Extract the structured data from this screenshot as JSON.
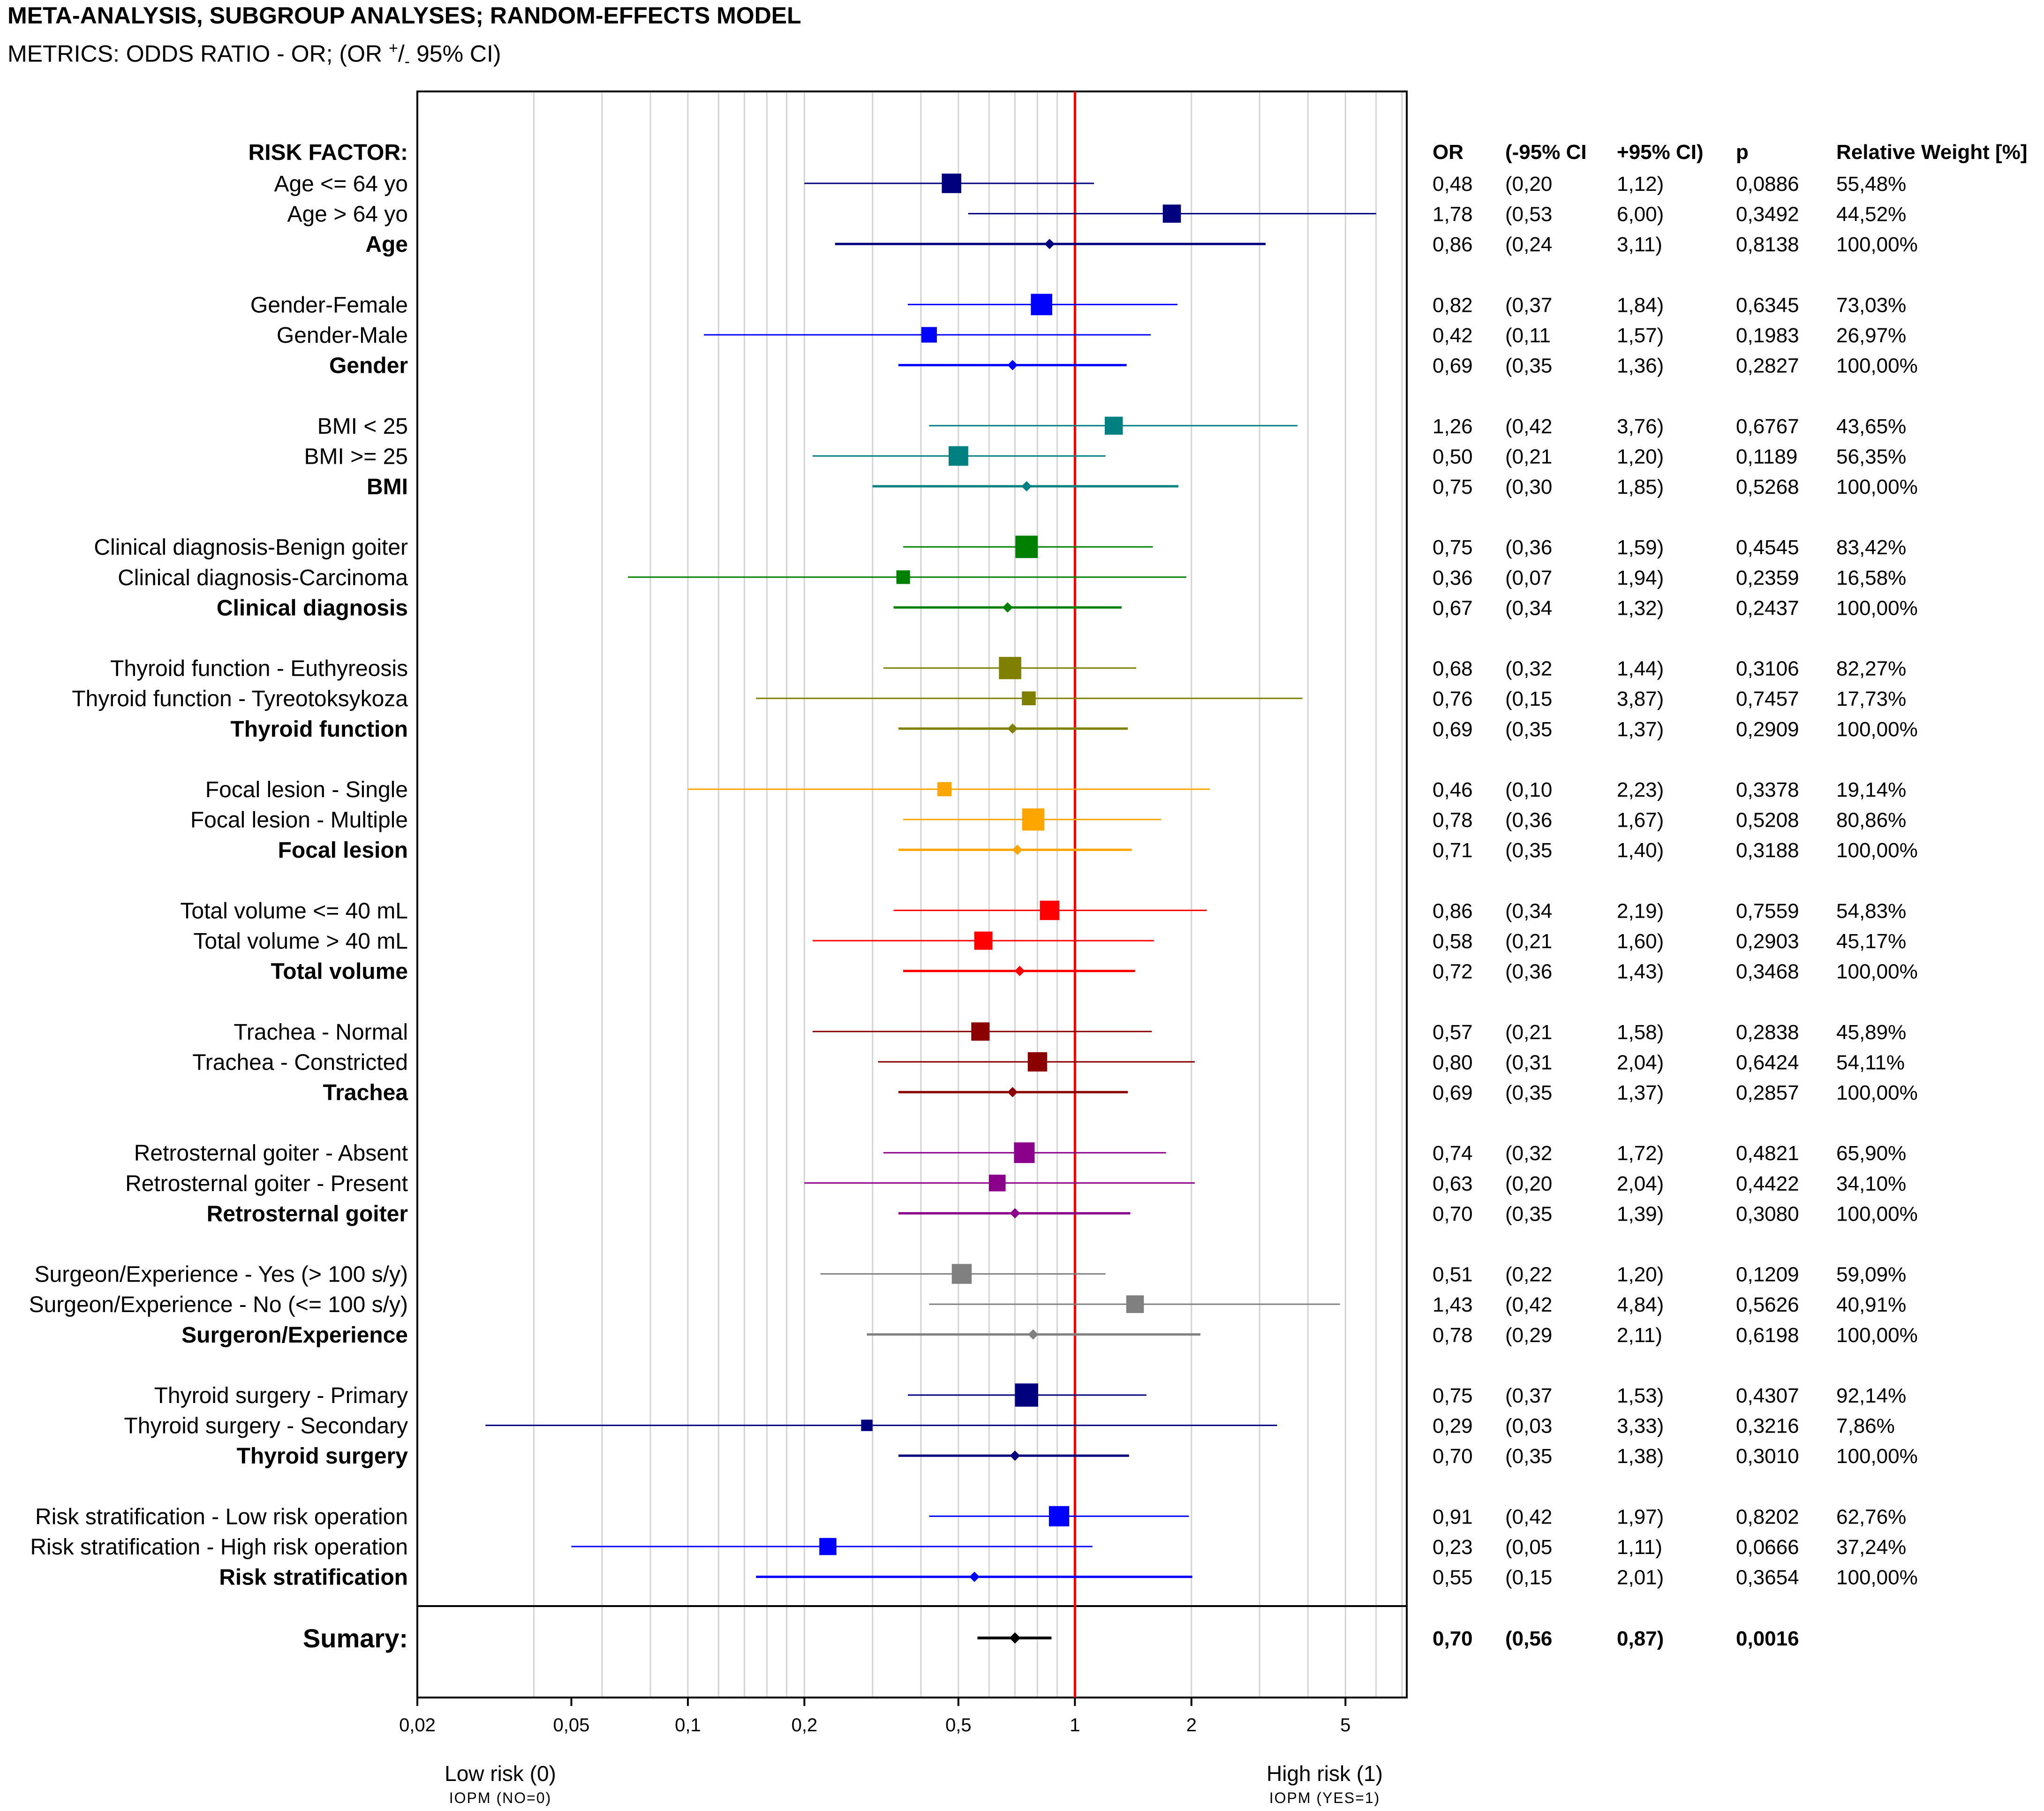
{
  "chart_data": {
    "type": "forest",
    "title": "META-ANALYSIS, SUBGROUP ANALYSES; RANDOM-EFFECTS MODEL",
    "subtitle_prefix": "METRICS: ODDS RATIO - OR; (OR ",
    "subtitle_plus": "+",
    "subtitle_slash": "/",
    "subtitle_minus": "-",
    "subtitle_suffix": " 95% CI)",
    "x_scale": "log",
    "xlim": [
      0.02,
      7.2
    ],
    "x_ticks": [
      0.02,
      0.05,
      0.1,
      0.2,
      0.5,
      1,
      2,
      5
    ],
    "x_tick_labels": [
      "0,02",
      "0,05",
      "0,1",
      "0,2",
      "0,5",
      "1",
      "2",
      "5"
    ],
    "reference_line": 1,
    "header_label": "RISK FACTOR:",
    "columns": [
      "OR",
      "(-95% CI",
      "+95% CI)",
      "p",
      "Relative Weight [%]"
    ],
    "left_footer": "Low risk (0)",
    "left_footer_sub": "IOPM (NO=0)",
    "right_footer": "High risk (1)",
    "right_footer_sub": "IOPM (YES=1)",
    "groups": [
      {
        "color": "#00007f",
        "rows": [
          {
            "label": "Age <= 64 yo",
            "or": 0.48,
            "lo": 0.2,
            "hi": 1.12,
            "or_s": "0,48",
            "lo_s": "(0,20",
            "hi_s": "1,12)",
            "p_s": "0,0886",
            "w_s": "55,48%",
            "w": 55.48
          },
          {
            "label": "Age > 64 yo",
            "or": 1.78,
            "lo": 0.53,
            "hi": 6.0,
            "or_s": "1,78",
            "lo_s": "(0,53",
            "hi_s": "6,00)",
            "p_s": "0,3492",
            "w_s": "44,52%",
            "w": 44.52
          },
          {
            "label": "Age",
            "or": 0.86,
            "lo": 0.24,
            "hi": 3.11,
            "or_s": "0,86",
            "lo_s": "(0,24",
            "hi_s": "3,11)",
            "p_s": "0,8138",
            "w_s": "100,00%",
            "w": 100,
            "total": true
          }
        ]
      },
      {
        "color": "#0000ff",
        "rows": [
          {
            "label": "Gender-Female",
            "or": 0.82,
            "lo": 0.37,
            "hi": 1.84,
            "or_s": "0,82",
            "lo_s": "(0,37",
            "hi_s": "1,84)",
            "p_s": "0,6345",
            "w_s": "73,03%",
            "w": 73.03
          },
          {
            "label": "Gender-Male",
            "or": 0.42,
            "lo": 0.11,
            "hi": 1.57,
            "or_s": "0,42",
            "lo_s": "(0,11",
            "hi_s": "1,57)",
            "p_s": "0,1983",
            "w_s": "26,97%",
            "w": 26.97
          },
          {
            "label": "Gender",
            "or": 0.69,
            "lo": 0.35,
            "hi": 1.36,
            "or_s": "0,69",
            "lo_s": "(0,35",
            "hi_s": "1,36)",
            "p_s": "0,2827",
            "w_s": "100,00%",
            "w": 100,
            "total": true
          }
        ]
      },
      {
        "color": "#008080",
        "rows": [
          {
            "label": "BMI < 25",
            "or": 1.26,
            "lo": 0.42,
            "hi": 3.76,
            "or_s": "1,26",
            "lo_s": "(0,42",
            "hi_s": "3,76)",
            "p_s": "0,6767",
            "w_s": "43,65%",
            "w": 43.65
          },
          {
            "label": "BMI >= 25",
            "or": 0.5,
            "lo": 0.21,
            "hi": 1.2,
            "or_s": "0,50",
            "lo_s": "(0,21",
            "hi_s": "1,20)",
            "p_s": "0,1189",
            "w_s": "56,35%",
            "w": 56.35
          },
          {
            "label": "BMI",
            "or": 0.75,
            "lo": 0.3,
            "hi": 1.85,
            "or_s": "0,75",
            "lo_s": "(0,30",
            "hi_s": "1,85)",
            "p_s": "0,5268",
            "w_s": "100,00%",
            "w": 100,
            "total": true
          }
        ]
      },
      {
        "color": "#008000",
        "rows": [
          {
            "label": "Clinical diagnosis-Benign goiter",
            "or": 0.75,
            "lo": 0.36,
            "hi": 1.59,
            "or_s": "0,75",
            "lo_s": "(0,36",
            "hi_s": "1,59)",
            "p_s": "0,4545",
            "w_s": "83,42%",
            "w": 83.42
          },
          {
            "label": "Clinical diagnosis-Carcinoma",
            "or": 0.36,
            "lo": 0.07,
            "hi": 1.94,
            "or_s": "0,36",
            "lo_s": "(0,07",
            "hi_s": "1,94)",
            "p_s": "0,2359",
            "w_s": "16,58%",
            "w": 16.58
          },
          {
            "label": "Clinical diagnosis",
            "or": 0.67,
            "lo": 0.34,
            "hi": 1.32,
            "or_s": "0,67",
            "lo_s": "(0,34",
            "hi_s": "1,32)",
            "p_s": "0,2437",
            "w_s": "100,00%",
            "w": 100,
            "total": true
          }
        ]
      },
      {
        "color": "#7f7f00",
        "rows": [
          {
            "label": "Thyroid function - Euthyreosis",
            "or": 0.68,
            "lo": 0.32,
            "hi": 1.44,
            "or_s": "0,68",
            "lo_s": "(0,32",
            "hi_s": "1,44)",
            "p_s": "0,3106",
            "w_s": "82,27%",
            "w": 82.27
          },
          {
            "label": "Thyroid function - Tyreotoksykoza",
            "or": 0.76,
            "lo": 0.15,
            "hi": 3.87,
            "or_s": "0,76",
            "lo_s": "(0,15",
            "hi_s": "3,87)",
            "p_s": "0,7457",
            "w_s": "17,73%",
            "w": 17.73
          },
          {
            "label": "Thyroid function",
            "or": 0.69,
            "lo": 0.35,
            "hi": 1.37,
            "or_s": "0,69",
            "lo_s": "(0,35",
            "hi_s": "1,37)",
            "p_s": "0,2909",
            "w_s": "100,00%",
            "w": 100,
            "total": true
          }
        ]
      },
      {
        "color": "#ffa500",
        "rows": [
          {
            "label": "Focal lesion - Single",
            "or": 0.46,
            "lo": 0.1,
            "hi": 2.23,
            "or_s": "0,46",
            "lo_s": "(0,10",
            "hi_s": "2,23)",
            "p_s": "0,3378",
            "w_s": "19,14%",
            "w": 19.14
          },
          {
            "label": "Focal lesion - Multiple",
            "or": 0.78,
            "lo": 0.36,
            "hi": 1.67,
            "or_s": "0,78",
            "lo_s": "(0,36",
            "hi_s": "1,67)",
            "p_s": "0,5208",
            "w_s": "80,86%",
            "w": 80.86
          },
          {
            "label": "Focal lesion",
            "or": 0.71,
            "lo": 0.35,
            "hi": 1.4,
            "or_s": "0,71",
            "lo_s": "(0,35",
            "hi_s": "1,40)",
            "p_s": "0,3188",
            "w_s": "100,00%",
            "w": 100,
            "total": true
          }
        ]
      },
      {
        "color": "#ff0000",
        "rows": [
          {
            "label": "Total volume <= 40 mL",
            "or": 0.86,
            "lo": 0.34,
            "hi": 2.19,
            "or_s": "0,86",
            "lo_s": "(0,34",
            "hi_s": "2,19)",
            "p_s": "0,7559",
            "w_s": "54,83%",
            "w": 54.83
          },
          {
            "label": "Total volume > 40 mL",
            "or": 0.58,
            "lo": 0.21,
            "hi": 1.6,
            "or_s": "0,58",
            "lo_s": "(0,21",
            "hi_s": "1,60)",
            "p_s": "0,2903",
            "w_s": "45,17%",
            "w": 45.17
          },
          {
            "label": "Total volume",
            "or": 0.72,
            "lo": 0.36,
            "hi": 1.43,
            "or_s": "0,72",
            "lo_s": "(0,36",
            "hi_s": "1,43)",
            "p_s": "0,3468",
            "w_s": "100,00%",
            "w": 100,
            "total": true
          }
        ]
      },
      {
        "color": "#8b0000",
        "rows": [
          {
            "label": "Trachea - Normal",
            "or": 0.57,
            "lo": 0.21,
            "hi": 1.58,
            "or_s": "0,57",
            "lo_s": "(0,21",
            "hi_s": "1,58)",
            "p_s": "0,2838",
            "w_s": "45,89%",
            "w": 45.89
          },
          {
            "label": "Trachea - Constricted",
            "or": 0.8,
            "lo": 0.31,
            "hi": 2.04,
            "or_s": "0,80",
            "lo_s": "(0,31",
            "hi_s": "2,04)",
            "p_s": "0,6424",
            "w_s": "54,11%",
            "w": 54.11
          },
          {
            "label": "Trachea",
            "or": 0.69,
            "lo": 0.35,
            "hi": 1.37,
            "or_s": "0,69",
            "lo_s": "(0,35",
            "hi_s": "1,37)",
            "p_s": "0,2857",
            "w_s": "100,00%",
            "w": 100,
            "total": true
          }
        ]
      },
      {
        "color": "#8b008b",
        "rows": [
          {
            "label": "Retrosternal goiter - Absent",
            "or": 0.74,
            "lo": 0.32,
            "hi": 1.72,
            "or_s": "0,74",
            "lo_s": "(0,32",
            "hi_s": "1,72)",
            "p_s": "0,4821",
            "w_s": "65,90%",
            "w": 65.9
          },
          {
            "label": "Retrosternal goiter - Present",
            "or": 0.63,
            "lo": 0.2,
            "hi": 2.04,
            "or_s": "0,63",
            "lo_s": "(0,20",
            "hi_s": "2,04)",
            "p_s": "0,4422",
            "w_s": "34,10%",
            "w": 34.1
          },
          {
            "label": "Retrosternal goiter",
            "or": 0.7,
            "lo": 0.35,
            "hi": 1.39,
            "or_s": "0,70",
            "lo_s": "(0,35",
            "hi_s": "1,39)",
            "p_s": "0,3080",
            "w_s": "100,00%",
            "w": 100,
            "total": true
          }
        ]
      },
      {
        "color": "#808080",
        "rows": [
          {
            "label": "Surgeon/Experience - Yes (> 100 s/y)",
            "or": 0.51,
            "lo": 0.22,
            "hi": 1.2,
            "or_s": "0,51",
            "lo_s": "(0,22",
            "hi_s": "1,20)",
            "p_s": "0,1209",
            "w_s": "59,09%",
            "w": 59.09
          },
          {
            "label": "Surgeon/Experience - No (<= 100 s/y)",
            "or": 1.43,
            "lo": 0.42,
            "hi": 4.84,
            "or_s": "1,43",
            "lo_s": "(0,42",
            "hi_s": "4,84)",
            "p_s": "0,5626",
            "w_s": "40,91%",
            "w": 40.91
          },
          {
            "label": "Surgeron/Experience",
            "or": 0.78,
            "lo": 0.29,
            "hi": 2.11,
            "or_s": "0,78",
            "lo_s": "(0,29",
            "hi_s": "2,11)",
            "p_s": "0,6198",
            "w_s": "100,00%",
            "w": 100,
            "total": true
          }
        ]
      },
      {
        "color": "#00007f",
        "rows": [
          {
            "label": "Thyroid surgery - Primary",
            "or": 0.75,
            "lo": 0.37,
            "hi": 1.53,
            "or_s": "0,75",
            "lo_s": "(0,37",
            "hi_s": "1,53)",
            "p_s": "0,4307",
            "w_s": "92,14%",
            "w": 92.14
          },
          {
            "label": "Thyroid surgery - Secondary",
            "or": 0.29,
            "lo": 0.03,
            "hi": 3.33,
            "or_s": "0,29",
            "lo_s": "(0,03",
            "hi_s": "3,33)",
            "p_s": "0,3216",
            "w_s": "7,86%",
            "w": 7.86
          },
          {
            "label": "Thyroid surgery",
            "or": 0.7,
            "lo": 0.35,
            "hi": 1.38,
            "or_s": "0,70",
            "lo_s": "(0,35",
            "hi_s": "1,38)",
            "p_s": "0,3010",
            "w_s": "100,00%",
            "w": 100,
            "total": true
          }
        ]
      },
      {
        "color": "#0000ff",
        "rows": [
          {
            "label": "Risk stratification - Low risk operation",
            "or": 0.91,
            "lo": 0.42,
            "hi": 1.97,
            "or_s": "0,91",
            "lo_s": "(0,42",
            "hi_s": "1,97)",
            "p_s": "0,8202",
            "w_s": "62,76%",
            "w": 62.76
          },
          {
            "label": "Risk stratification - High risk operation",
            "or": 0.23,
            "lo": 0.05,
            "hi": 1.11,
            "or_s": "0,23",
            "lo_s": "(0,05",
            "hi_s": "1,11)",
            "p_s": "0,0666",
            "w_s": "37,24%",
            "w": 37.24
          },
          {
            "label": "Risk stratification",
            "or": 0.55,
            "lo": 0.15,
            "hi": 2.01,
            "or_s": "0,55",
            "lo_s": "(0,15",
            "hi_s": "2,01)",
            "p_s": "0,3654",
            "w_s": "100,00%",
            "w": 100,
            "total": true
          }
        ]
      }
    ],
    "summary": {
      "label": "Sumary:",
      "or": 0.7,
      "lo": 0.56,
      "hi": 0.87,
      "or_s": "0,70",
      "lo_s": "(0,56",
      "hi_s": "0,87)",
      "p_s": "0,0016",
      "color": "#000000"
    }
  }
}
